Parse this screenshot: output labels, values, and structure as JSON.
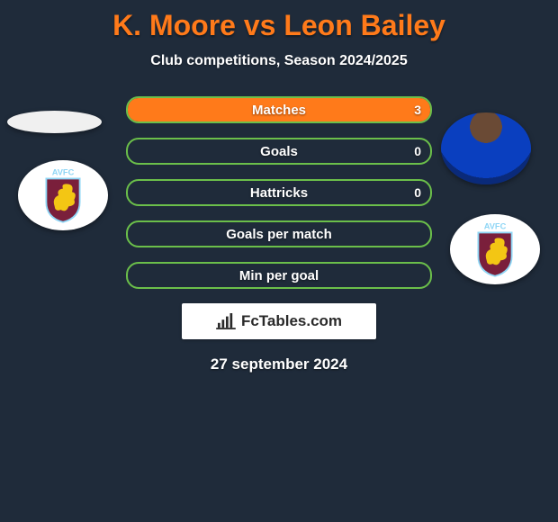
{
  "background_color": "#1f2b3a",
  "title": {
    "text": "K. Moore vs Leon Bailey",
    "color": "#ff7a1a",
    "fontsize": 32,
    "fontweight": 800
  },
  "subtitle": {
    "text": "Club competitions, Season 2024/2025",
    "color": "#ffffff",
    "fontsize": 16
  },
  "players": {
    "left": {
      "name": "K. Moore",
      "club": "AVFC",
      "avatar_bg": "#f0f0f0"
    },
    "right": {
      "name": "Leon Bailey",
      "club": "AVFC"
    }
  },
  "crest": {
    "bg": "#ffffff",
    "shield_fill": "#7a1f3b",
    "shield_border": "#8fd6f5",
    "lion_fill": "#f3c614",
    "text": "AVFC",
    "text_color": "#8fd6f5"
  },
  "bars": {
    "border_color": "#6bbf4a",
    "fill_left_color": "#6bbf4a",
    "fill_right_color": "#ff7a1a",
    "label_color": "#ffffff",
    "label_fontsize": 15,
    "rows": [
      {
        "label": "Matches",
        "left": "",
        "right": "3",
        "left_pct": 0,
        "right_pct": 100
      },
      {
        "label": "Goals",
        "left": "",
        "right": "0",
        "left_pct": 0,
        "right_pct": 0
      },
      {
        "label": "Hattricks",
        "left": "",
        "right": "0",
        "left_pct": 0,
        "right_pct": 0
      },
      {
        "label": "Goals per match",
        "left": "",
        "right": "",
        "left_pct": 0,
        "right_pct": 0
      },
      {
        "label": "Min per goal",
        "left": "",
        "right": "",
        "left_pct": 0,
        "right_pct": 0
      }
    ]
  },
  "attribution": {
    "text": "FcTables.com",
    "bg": "#ffffff",
    "text_color": "#2a2a2a",
    "icon_color": "#2a2a2a"
  },
  "date": {
    "text": "27 september 2024",
    "color": "#ffffff",
    "fontsize": 17
  }
}
